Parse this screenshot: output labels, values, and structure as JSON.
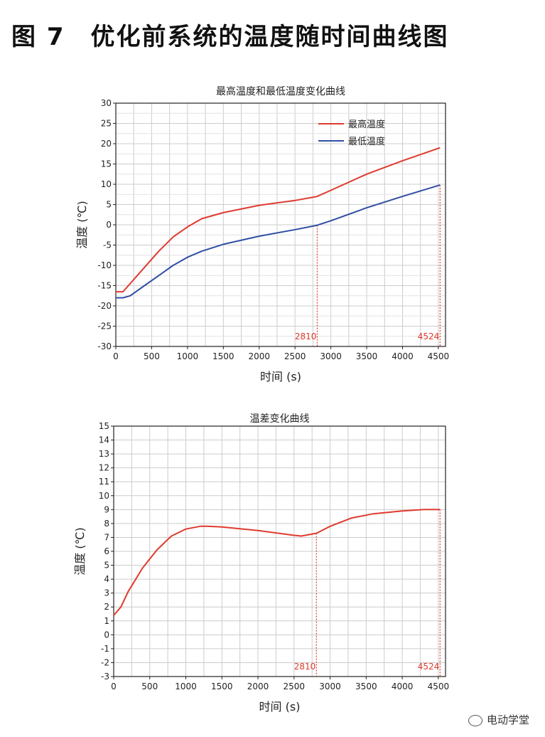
{
  "figure_title": "图 7　优化前系统的温度随时间曲线图",
  "watermark": "电动学堂",
  "colors": {
    "max_line": "#e03a2e",
    "min_line": "#2f4fa3",
    "diff_line": "#e03a2e",
    "marker": "#e03a2e",
    "grid": "#cccccc"
  },
  "chart_data": [
    {
      "type": "line",
      "title": "最高温度和最低温度变化曲线",
      "xlabel": "时间 (s)",
      "ylabel": "温度 (℃)",
      "xlim": [
        0,
        4600
      ],
      "ylim": [
        -30,
        30
      ],
      "xticks": [
        0,
        500,
        1000,
        1500,
        2000,
        2500,
        3000,
        3500,
        4000,
        4500
      ],
      "yticks": [
        -30,
        -25,
        -20,
        -15,
        -10,
        -5,
        0,
        5,
        10,
        15,
        20,
        25,
        30
      ],
      "grid": true,
      "legend_position": "top-right",
      "series": [
        {
          "name": "最高温度",
          "color": "#e03a2e",
          "x": [
            0,
            100,
            200,
            400,
            600,
            800,
            1000,
            1200,
            1500,
            2000,
            2500,
            2810,
            3000,
            3500,
            4000,
            4524
          ],
          "values": [
            -16.5,
            -16.5,
            -14.5,
            -10.5,
            -6.5,
            -3,
            -0.5,
            1.5,
            3,
            4.8,
            6,
            7,
            8.5,
            12.5,
            15.8,
            19
          ]
        },
        {
          "name": "最低温度",
          "color": "#2f4fa3",
          "x": [
            0,
            100,
            200,
            400,
            600,
            800,
            1000,
            1200,
            1500,
            2000,
            2500,
            2810,
            3000,
            3500,
            4000,
            4524
          ],
          "values": [
            -18,
            -18,
            -17.5,
            -15,
            -12.5,
            -10,
            -8,
            -6.5,
            -4.8,
            -2.8,
            -1.2,
            -0.1,
            1,
            4.2,
            7,
            9.8
          ]
        }
      ],
      "markers": [
        {
          "x": 2810,
          "label": "2810"
        },
        {
          "x": 4524,
          "label": "4524"
        }
      ]
    },
    {
      "type": "line",
      "title": "温差变化曲线",
      "xlabel": "时间 (s)",
      "ylabel": "温度 (℃)",
      "xlim": [
        0,
        4600
      ],
      "ylim": [
        -3,
        15
      ],
      "xticks": [
        0,
        500,
        1000,
        1500,
        2000,
        2500,
        3000,
        3500,
        4000,
        4500
      ],
      "yticks": [
        -3,
        -2,
        -1,
        0,
        1,
        2,
        3,
        4,
        5,
        6,
        7,
        8,
        9,
        10,
        11,
        12,
        13,
        14,
        15
      ],
      "grid": true,
      "series": [
        {
          "color": "#e03a2e",
          "x": [
            0,
            100,
            200,
            400,
            600,
            800,
            1000,
            1200,
            1300,
            1500,
            2000,
            2500,
            2600,
            2810,
            3000,
            3300,
            3600,
            4000,
            4300,
            4524
          ],
          "values": [
            1.4,
            2,
            3.1,
            4.8,
            6.1,
            7.1,
            7.6,
            7.8,
            7.8,
            7.75,
            7.5,
            7.15,
            7.1,
            7.3,
            7.8,
            8.4,
            8.7,
            8.9,
            9,
            9
          ]
        }
      ],
      "markers": [
        {
          "x": 2810,
          "label": "2810"
        },
        {
          "x": 4524,
          "label": "4524"
        }
      ]
    }
  ]
}
